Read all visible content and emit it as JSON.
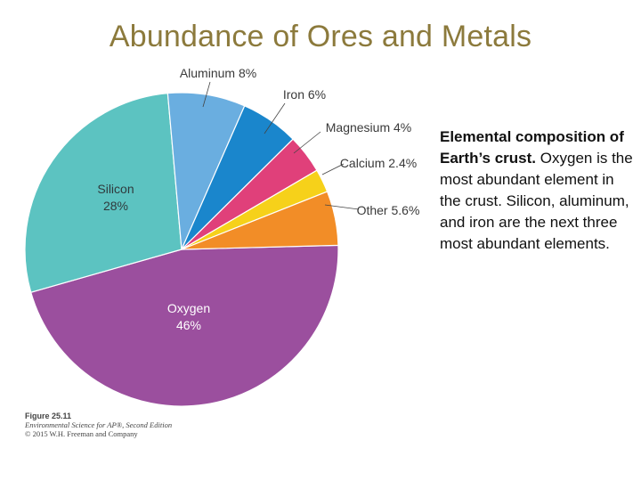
{
  "title": "Abundance of Ores and Metals",
  "caption": {
    "lead": "Elemental composition of Earth’s crust.",
    "body": "Oxygen is the most abundant element in the crust. Silicon, aluminum, and iron are the next three most abundant elements."
  },
  "figure_credit": {
    "number": "Figure 25.11",
    "book": "Environmental Science for AP®, Second Edition",
    "copyright": "© 2015 W.H. Freeman and Company"
  },
  "chart_data": {
    "type": "pie",
    "slices": [
      {
        "name": "Oxygen",
        "label": "46%",
        "value": 46,
        "color": "#9b4f9e"
      },
      {
        "name": "Silicon",
        "label": "28%",
        "value": 28,
        "color": "#5cc3c1"
      },
      {
        "name": "Aluminum",
        "label": "8%",
        "value": 8,
        "color": "#6aaee0"
      },
      {
        "name": "Iron",
        "label": "6%",
        "value": 6,
        "color": "#1a86cc"
      },
      {
        "name": "Magnesium",
        "label": "4%",
        "value": 4,
        "color": "#e0407a"
      },
      {
        "name": "Calcium",
        "label": "2.4%",
        "value": 2.4,
        "color": "#f6d11a"
      },
      {
        "name": "Other",
        "label": "5.6%",
        "value": 5.6,
        "color": "#f28d27"
      }
    ]
  }
}
